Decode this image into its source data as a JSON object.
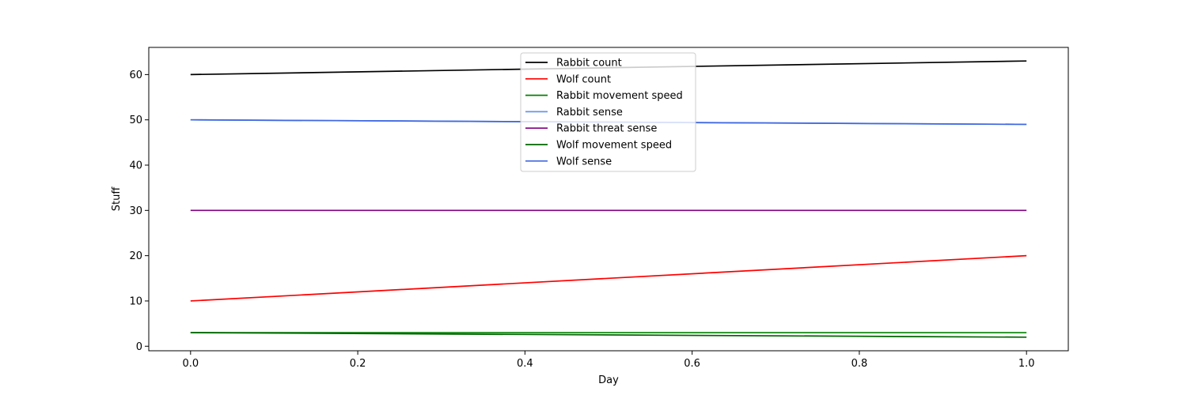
{
  "chart_data": {
    "type": "line",
    "title": "",
    "xlabel": "Day",
    "ylabel": "Stuff",
    "xlim": [
      -0.05,
      1.05
    ],
    "ylim": [
      -1.0,
      66.0
    ],
    "xticks": [
      "0.0",
      "0.2",
      "0.4",
      "0.6",
      "0.8",
      "1.0"
    ],
    "yticks": [
      "0",
      "10",
      "20",
      "30",
      "40",
      "50",
      "60"
    ],
    "x": [
      0,
      1
    ],
    "legend_position": "upper-center",
    "grid": false,
    "series": [
      {
        "name": "Rabbit count",
        "color": "#000000",
        "values": [
          60,
          63
        ]
      },
      {
        "name": "Wolf count",
        "color": "#ff0000",
        "values": [
          10,
          20
        ]
      },
      {
        "name": "Rabbit movement speed",
        "color": "#008000",
        "values": [
          3,
          3
        ]
      },
      {
        "name": "Rabbit sense",
        "color": "#6495ed",
        "values": [
          50,
          49
        ]
      },
      {
        "name": "Rabbit threat sense",
        "color": "#800080",
        "values": [
          30,
          30
        ]
      },
      {
        "name": "Wolf movement speed",
        "color": "#006400",
        "values": [
          3,
          2
        ]
      },
      {
        "name": "Wolf sense",
        "color": "#4169e1",
        "values": [
          50,
          49
        ]
      }
    ]
  }
}
